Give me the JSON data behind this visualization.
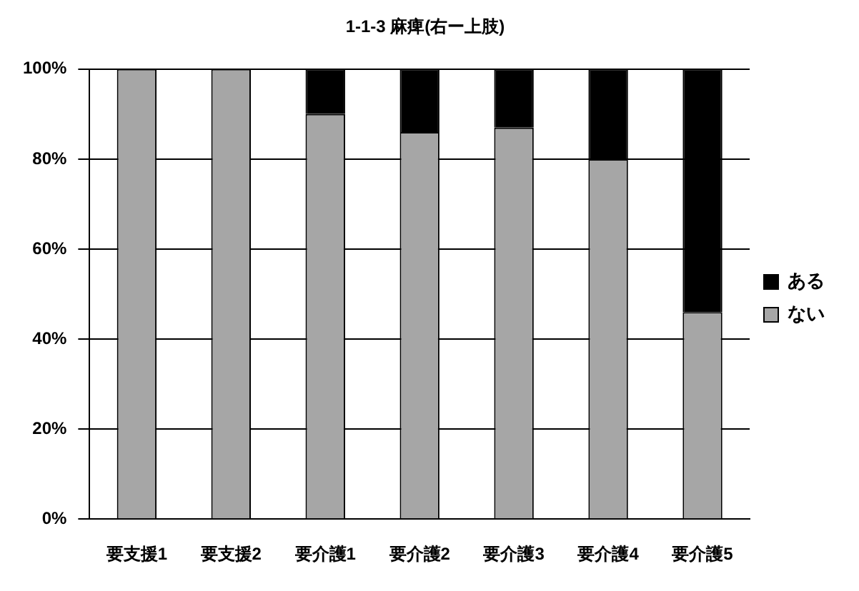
{
  "chart_data": {
    "type": "bar",
    "title": "1-1-3 麻痺(右ー上肢)",
    "categories": [
      "要支援1",
      "要支援2",
      "要介護1",
      "要介護2",
      "要介護3",
      "要介護4",
      "要介護5"
    ],
    "stacked": true,
    "series": [
      {
        "name": "ない",
        "color": "#a6a6a6",
        "values": [
          100,
          100,
          90,
          86,
          87,
          80,
          46
        ]
      },
      {
        "name": "ある",
        "color": "#000000",
        "values": [
          0,
          0,
          10,
          14,
          13,
          20,
          54
        ]
      }
    ],
    "ylim": [
      0,
      100
    ],
    "yticks": [
      {
        "value": 0,
        "label": "0%"
      },
      {
        "value": 20,
        "label": "20%"
      },
      {
        "value": 40,
        "label": "40%"
      },
      {
        "value": 60,
        "label": "60%"
      },
      {
        "value": 80,
        "label": "80%"
      },
      {
        "value": 100,
        "label": "100%"
      }
    ],
    "grid": "y",
    "legend": "right"
  }
}
